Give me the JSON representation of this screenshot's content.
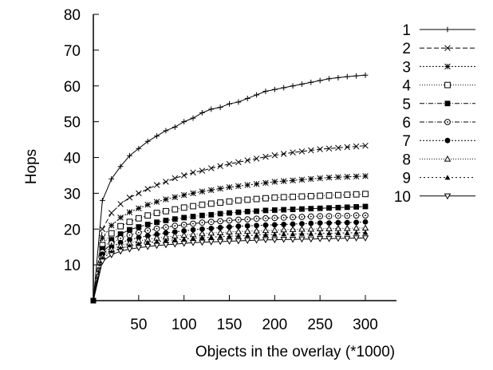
{
  "chart_data": {
    "type": "line",
    "title": "",
    "xlabel": "Objects in the overlay (*1000)",
    "ylabel": "Hops",
    "xlim": [
      0,
      300
    ],
    "ylim": [
      0,
      80
    ],
    "x_ticks": [
      50,
      100,
      150,
      200,
      250,
      300
    ],
    "y_ticks": [
      10,
      20,
      30,
      40,
      50,
      60,
      70,
      80
    ],
    "x_tick_labels": [
      "50",
      "100",
      "150",
      "200",
      "250",
      "300"
    ],
    "y_tick_labels": [
      "10",
      "20",
      "30",
      "40",
      "50",
      "60",
      "70",
      "80"
    ],
    "grid": false,
    "legend_position": "top-right",
    "x": [
      0,
      10,
      20,
      30,
      40,
      50,
      60,
      70,
      80,
      90,
      100,
      110,
      120,
      130,
      140,
      150,
      160,
      170,
      180,
      190,
      200,
      210,
      220,
      230,
      240,
      250,
      260,
      270,
      280,
      290,
      300
    ],
    "series": [
      {
        "name": "1",
        "marker": "plus",
        "dash": "",
        "values": [
          0,
          28.0,
          34.0,
          37.5,
          40.5,
          42.5,
          44.5,
          46.0,
          47.5,
          48.5,
          50.0,
          51.0,
          52.5,
          53.5,
          54.0,
          55.0,
          55.5,
          56.5,
          57.5,
          58.5,
          59.0,
          59.5,
          60.0,
          60.5,
          61.0,
          61.5,
          62.0,
          62.3,
          62.6,
          62.8,
          63.0
        ]
      },
      {
        "name": "2",
        "marker": "x",
        "dash": "6,3",
        "values": [
          0,
          20.0,
          24.5,
          27.0,
          28.8,
          30.0,
          31.2,
          32.3,
          33.2,
          34.2,
          35.0,
          35.8,
          36.3,
          37.0,
          37.6,
          38.2,
          38.7,
          39.2,
          39.7,
          40.2,
          40.6,
          41.0,
          41.4,
          41.7,
          42.0,
          42.3,
          42.5,
          42.7,
          42.9,
          43.1,
          43.3
        ]
      },
      {
        "name": "3",
        "marker": "star",
        "dash": "2,2",
        "values": [
          0,
          17.5,
          21.0,
          23.2,
          24.7,
          25.8,
          26.8,
          27.6,
          28.3,
          28.9,
          29.5,
          30.0,
          30.5,
          30.9,
          31.3,
          31.7,
          32.0,
          32.3,
          32.6,
          32.9,
          33.2,
          33.4,
          33.6,
          33.8,
          34.0,
          34.2,
          34.4,
          34.5,
          34.6,
          34.7,
          34.8
        ]
      },
      {
        "name": "4",
        "marker": "square-open",
        "dash": "1,2",
        "values": [
          0,
          15.5,
          18.8,
          20.8,
          22.0,
          23.0,
          23.8,
          24.5,
          25.0,
          25.5,
          26.0,
          26.4,
          26.8,
          27.1,
          27.4,
          27.7,
          28.0,
          28.2,
          28.4,
          28.6,
          28.8,
          28.9,
          29.0,
          29.1,
          29.2,
          29.3,
          29.4,
          29.5,
          29.6,
          29.7,
          29.8
        ]
      },
      {
        "name": "5",
        "marker": "square-filled",
        "dash": "6,2,1,2",
        "values": [
          0,
          14.5,
          17.0,
          18.6,
          19.8,
          20.6,
          21.3,
          21.9,
          22.4,
          22.8,
          23.2,
          23.5,
          23.8,
          24.0,
          24.3,
          24.5,
          24.7,
          24.9,
          25.0,
          25.2,
          25.3,
          25.4,
          25.5,
          25.6,
          25.7,
          25.8,
          25.9,
          26.0,
          26.1,
          26.2,
          26.3
        ]
      },
      {
        "name": "6",
        "marker": "circle-open-dot",
        "dash": "6,2,1,2",
        "values": [
          0,
          13.5,
          16.0,
          17.4,
          18.3,
          19.0,
          19.6,
          20.1,
          20.5,
          20.9,
          21.2,
          21.5,
          21.8,
          22.0,
          22.2,
          22.4,
          22.6,
          22.7,
          22.9,
          23.0,
          23.1,
          23.2,
          23.3,
          23.4,
          23.5,
          23.6,
          23.6,
          23.7,
          23.7,
          23.8,
          23.8
        ]
      },
      {
        "name": "7",
        "marker": "circle-filled",
        "dash": "2,2",
        "values": [
          0,
          13.0,
          15.0,
          16.2,
          17.0,
          17.6,
          18.1,
          18.5,
          18.9,
          19.2,
          19.5,
          19.8,
          20.0,
          20.2,
          20.4,
          20.6,
          20.8,
          20.9,
          21.0,
          21.1,
          21.2,
          21.3,
          21.4,
          21.5,
          21.6,
          21.7,
          21.7,
          21.8,
          21.8,
          21.9,
          22.0
        ]
      },
      {
        "name": "8",
        "marker": "triangle-open",
        "dash": "1,2",
        "values": [
          0,
          12.3,
          14.3,
          15.4,
          16.1,
          16.7,
          17.1,
          17.5,
          17.8,
          18.1,
          18.3,
          18.5,
          18.7,
          18.9,
          19.0,
          19.2,
          19.3,
          19.4,
          19.5,
          19.6,
          19.7,
          19.8,
          19.9,
          20.0,
          20.0,
          20.1,
          20.1,
          20.2,
          20.2,
          20.3,
          20.3
        ]
      },
      {
        "name": "9",
        "marker": "triangle-filled",
        "dash": "2,3",
        "values": [
          0,
          11.8,
          13.6,
          14.6,
          15.3,
          15.8,
          16.2,
          16.5,
          16.8,
          17.0,
          17.2,
          17.4,
          17.6,
          17.7,
          17.9,
          18.0,
          18.1,
          18.2,
          18.3,
          18.4,
          18.5,
          18.6,
          18.6,
          18.7,
          18.7,
          18.8,
          18.8,
          18.9,
          18.9,
          19.0,
          19.0
        ]
      },
      {
        "name": "10",
        "marker": "triangle-down-open",
        "dash": "",
        "values": [
          0,
          11.0,
          12.8,
          13.8,
          14.4,
          14.8,
          15.1,
          15.4,
          15.6,
          15.8,
          16.0,
          16.2,
          16.3,
          16.4,
          16.5,
          16.6,
          16.7,
          16.8,
          16.9,
          17.0,
          17.0,
          17.1,
          17.1,
          17.2,
          17.2,
          17.3,
          17.3,
          17.4,
          17.4,
          17.5,
          17.5
        ]
      }
    ]
  }
}
